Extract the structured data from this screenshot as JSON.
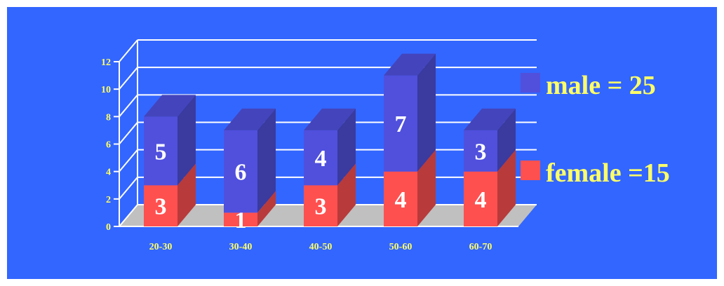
{
  "chart_data": {
    "type": "bar",
    "stacked": true,
    "three_d": true,
    "categories": [
      "20-30",
      "30-40",
      "40-50",
      "50-60",
      "60-70"
    ],
    "series": [
      {
        "name": "female",
        "values": [
          3,
          1,
          3,
          4,
          4
        ],
        "color": "#ff5050"
      },
      {
        "name": "male",
        "values": [
          5,
          6,
          4,
          7,
          3
        ],
        "color": "#5050dd"
      }
    ],
    "data_labels": {
      "female": [
        "3",
        "1",
        "3",
        "4",
        "4"
      ],
      "male": [
        "5",
        "6",
        "4",
        "7",
        "3"
      ]
    },
    "ylim": [
      0,
      12
    ],
    "yticks": [
      "0",
      "2",
      "4",
      "6",
      "8",
      "10",
      "12"
    ],
    "grid": true,
    "legend": {
      "position": "right",
      "entries": [
        {
          "label": "male = 25",
          "color": "#5050dd"
        },
        {
          "label": "female =15",
          "color": "#ff5050"
        }
      ]
    },
    "colors": {
      "background": "#3366ff",
      "floor": "#c0c0c0",
      "grid": "#ffffff",
      "tick_text": "#ffff66",
      "label_text": "#ffffff"
    }
  }
}
